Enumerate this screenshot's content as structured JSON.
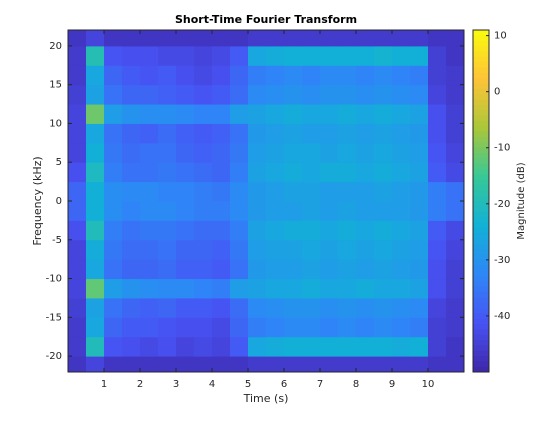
{
  "chart_data": {
    "type": "spectrogram",
    "title": "Short-Time Fourier Transform",
    "xlabel": "Time (s)",
    "ylabel": "Frequency (kHz)",
    "colorbar_label": "Magnitude (dB)",
    "colormap": "parula",
    "x": [
      0.25,
      0.75,
      1.25,
      1.75,
      2.25,
      2.75,
      3.25,
      3.75,
      4.25,
      4.75,
      5.25,
      5.75,
      6.25,
      6.75,
      7.25,
      7.75,
      8.25,
      8.75,
      9.25,
      9.75,
      10.25,
      10.75
    ],
    "y": [
      -21.25,
      -18.75,
      -16.25,
      -13.75,
      -11.25,
      -8.75,
      -6.25,
      -3.75,
      -1.25,
      1.25,
      3.75,
      6.25,
      8.75,
      11.25,
      13.75,
      16.25,
      18.75,
      21.25
    ],
    "values": [
      [
        -47,
        -44,
        -47,
        -47,
        -47,
        -47,
        -47,
        -47,
        -47,
        -47,
        -46,
        -46,
        -46,
        -46,
        -46,
        -46,
        -46,
        -46,
        -46,
        -46,
        -47,
        -47
      ],
      [
        -46,
        -20,
        -41,
        -42,
        -43,
        -42,
        -44,
        -43,
        -44,
        -40,
        -26,
        -25,
        -24,
        -24,
        -24,
        -24,
        -24,
        -24,
        -25,
        -24,
        -45,
        -47
      ],
      [
        -46,
        -26,
        -38,
        -40,
        -40,
        -41,
        -42,
        -42,
        -43,
        -38,
        -34,
        -33,
        -32,
        -32,
        -33,
        -32,
        -33,
        -32,
        -33,
        -34,
        -45,
        -46
      ],
      [
        -45,
        -27,
        -36,
        -38,
        -39,
        -38,
        -40,
        -40,
        -41,
        -37,
        -32,
        -31,
        -30,
        -30,
        -31,
        -30,
        -31,
        -30,
        -31,
        -32,
        -44,
        -46
      ],
      [
        -44,
        -12,
        -28,
        -30,
        -31,
        -32,
        -32,
        -33,
        -34,
        -28,
        -27,
        -26,
        -26,
        -25,
        -26,
        -26,
        -25,
        -26,
        -26,
        -27,
        -42,
        -45
      ],
      [
        -44,
        -26,
        -36,
        -38,
        -38,
        -37,
        -39,
        -39,
        -40,
        -36,
        -29,
        -28,
        -28,
        -27,
        -28,
        -27,
        -28,
        -27,
        -28,
        -29,
        -42,
        -45
      ],
      [
        -44,
        -25,
        -35,
        -37,
        -37,
        -36,
        -38,
        -38,
        -39,
        -35,
        -28,
        -27,
        -27,
        -26,
        -27,
        -26,
        -27,
        -26,
        -27,
        -28,
        -41,
        -44
      ],
      [
        -42,
        -20,
        -34,
        -36,
        -35,
        -35,
        -36,
        -37,
        -37,
        -34,
        -27,
        -26,
        -25,
        -25,
        -26,
        -25,
        -26,
        -25,
        -26,
        -27,
        -40,
        -43
      ],
      [
        -38,
        -24,
        -31,
        -33,
        -32,
        -32,
        -33,
        -34,
        -34,
        -32,
        -29,
        -28,
        -28,
        -27,
        -28,
        -27,
        -28,
        -28,
        -28,
        -29,
        -34,
        -36
      ],
      [
        -38,
        -24,
        -31,
        -32,
        -32,
        -33,
        -33,
        -34,
        -35,
        -32,
        -29,
        -28,
        -27,
        -27,
        -28,
        -28,
        -28,
        -27,
        -28,
        -29,
        -34,
        -36
      ],
      [
        -42,
        -21,
        -34,
        -36,
        -36,
        -35,
        -36,
        -37,
        -38,
        -34,
        -27,
        -26,
        -25,
        -26,
        -25,
        -25,
        -26,
        -25,
        -26,
        -27,
        -40,
        -43
      ],
      [
        -44,
        -24,
        -35,
        -37,
        -36,
        -36,
        -38,
        -39,
        -38,
        -35,
        -28,
        -27,
        -26,
        -26,
        -27,
        -26,
        -27,
        -26,
        -27,
        -28,
        -41,
        -44
      ],
      [
        -44,
        -26,
        -36,
        -38,
        -39,
        -37,
        -39,
        -40,
        -39,
        -36,
        -29,
        -28,
        -27,
        -28,
        -28,
        -27,
        -28,
        -27,
        -28,
        -29,
        -42,
        -45
      ],
      [
        -44,
        -11,
        -28,
        -30,
        -31,
        -31,
        -32,
        -33,
        -33,
        -28,
        -27,
        -26,
        -25,
        -26,
        -26,
        -25,
        -26,
        -25,
        -26,
        -27,
        -42,
        -45
      ],
      [
        -45,
        -27,
        -36,
        -38,
        -38,
        -39,
        -40,
        -41,
        -40,
        -37,
        -32,
        -31,
        -30,
        -31,
        -30,
        -30,
        -31,
        -30,
        -31,
        -32,
        -44,
        -46
      ],
      [
        -46,
        -26,
        -38,
        -40,
        -41,
        -40,
        -42,
        -43,
        -42,
        -38,
        -34,
        -33,
        -32,
        -33,
        -32,
        -32,
        -33,
        -32,
        -33,
        -34,
        -45,
        -46
      ],
      [
        -46,
        -19,
        -41,
        -42,
        -42,
        -43,
        -43,
        -44,
        -43,
        -40,
        -26,
        -25,
        -24,
        -24,
        -24,
        -24,
        -24,
        -23,
        -24,
        -24,
        -45,
        -47
      ],
      [
        -47,
        -44,
        -47,
        -47,
        -47,
        -47,
        -47,
        -47,
        -47,
        -47,
        -46,
        -46,
        -46,
        -46,
        -46,
        -46,
        -46,
        -46,
        -46,
        -46,
        -47,
        -47
      ]
    ],
    "xlim": [
      0,
      11
    ],
    "ylim": [
      -22.05,
      22.05
    ],
    "xticks": [
      1,
      2,
      3,
      4,
      5,
      6,
      7,
      8,
      9,
      10
    ],
    "yticks": [
      -20,
      -15,
      -10,
      -5,
      0,
      5,
      10,
      15,
      20
    ],
    "clim": [
      -50,
      11
    ],
    "cticks": [
      -40,
      -30,
      -20,
      -10,
      0,
      10
    ]
  }
}
